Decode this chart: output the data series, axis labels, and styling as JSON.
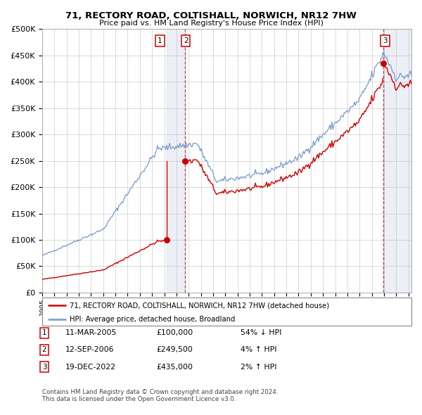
{
  "title": "71, RECTORY ROAD, COLTISHALL, NORWICH, NR12 7HW",
  "subtitle": "Price paid vs. HM Land Registry's House Price Index (HPI)",
  "ylim": [
    0,
    500000
  ],
  "yticks": [
    0,
    50000,
    100000,
    150000,
    200000,
    250000,
    300000,
    350000,
    400000,
    450000,
    500000
  ],
  "hpi_color": "#7799cc",
  "price_color": "#cc0000",
  "bg_color": "#ffffff",
  "grid_color": "#cccccc",
  "sales": [
    {
      "date_num": 2005.19,
      "price": 100000,
      "label": "1"
    },
    {
      "date_num": 2006.71,
      "price": 249500,
      "label": "2"
    },
    {
      "date_num": 2022.96,
      "price": 435000,
      "label": "3"
    }
  ],
  "sale_dates_str": [
    "11-MAR-2005",
    "12-SEP-2006",
    "19-DEC-2022"
  ],
  "sale_prices_str": [
    "£100,000",
    "£249,500",
    "£435,000"
  ],
  "sale_hpi_str": [
    "54% ↓ HPI",
    "4% ↑ HPI",
    "2% ↑ HPI"
  ],
  "legend_line1": "71, RECTORY ROAD, COLTISHALL, NORWICH, NR12 7HW (detached house)",
  "legend_line2": "HPI: Average price, detached house, Broadland",
  "footnote1": "Contains HM Land Registry data © Crown copyright and database right 2024.",
  "footnote2": "This data is licensed under the Open Government Licence v3.0.",
  "vspan1_start": 2005.19,
  "vspan1_end": 2006.71,
  "vspan2_start": 2022.96,
  "vspan2_end": 2025.25,
  "vline1": 2006.71,
  "vline2": 2022.96,
  "xlim_start": 1995.0,
  "xlim_end": 2025.25
}
